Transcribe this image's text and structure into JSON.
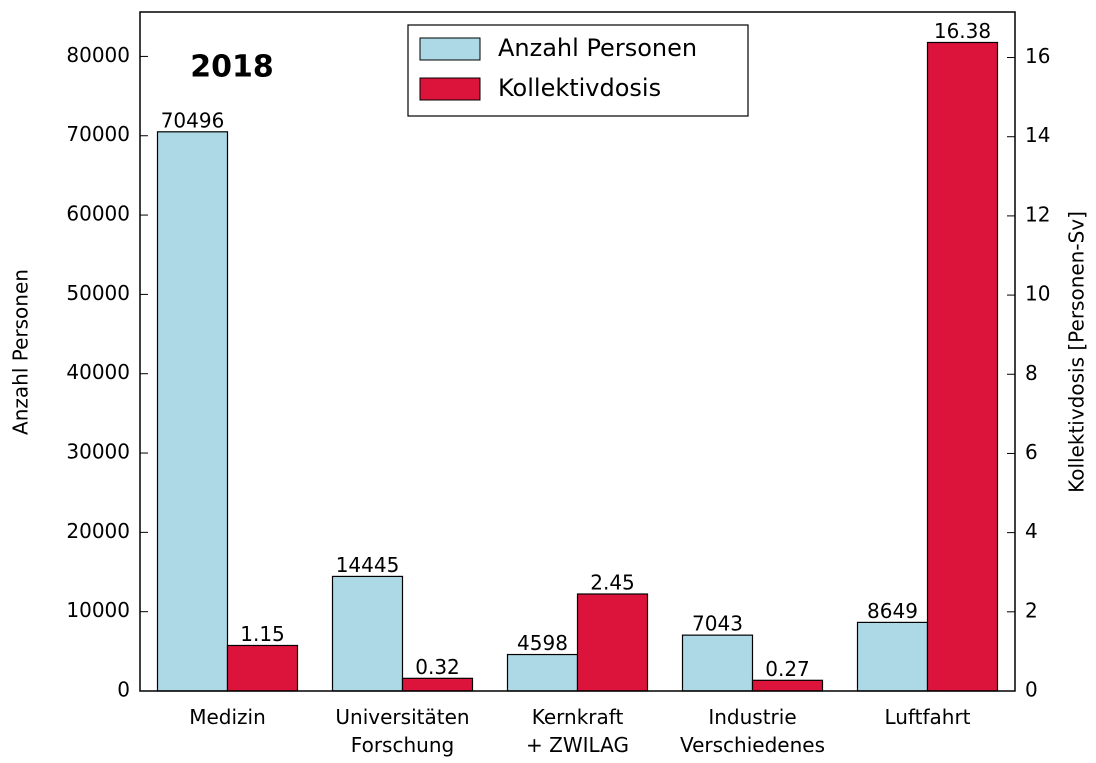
{
  "chart_data": {
    "type": "bar",
    "annotation": "2018",
    "ylabel": "Anzahl Personen",
    "y2label": "Kollektivdosis [Personen-Sv]",
    "categories": [
      "Medizin",
      "Universitäten\nForschung",
      "Kernkraft\n+ ZWILAG",
      "Industrie\nVerschiedenes",
      "Luftfahrt"
    ],
    "series": [
      {
        "name": "Anzahl Personen",
        "color": "#add8e6",
        "values": [
          70496,
          14445,
          4598,
          7043,
          8649
        ]
      },
      {
        "name": "Kollektivdosis",
        "color": "#dc143c",
        "axis": "y2",
        "values": [
          1.15,
          0.32,
          2.45,
          0.27,
          16.38
        ]
      }
    ],
    "ylim": [
      0,
      85600
    ],
    "yticks": [
      0,
      10000,
      20000,
      30000,
      40000,
      50000,
      60000,
      70000,
      80000
    ],
    "y2lim": [
      0,
      17.15
    ],
    "y2ticks": [
      0,
      2,
      4,
      6,
      8,
      10,
      12,
      14,
      16
    ],
    "legend": "upper center"
  }
}
